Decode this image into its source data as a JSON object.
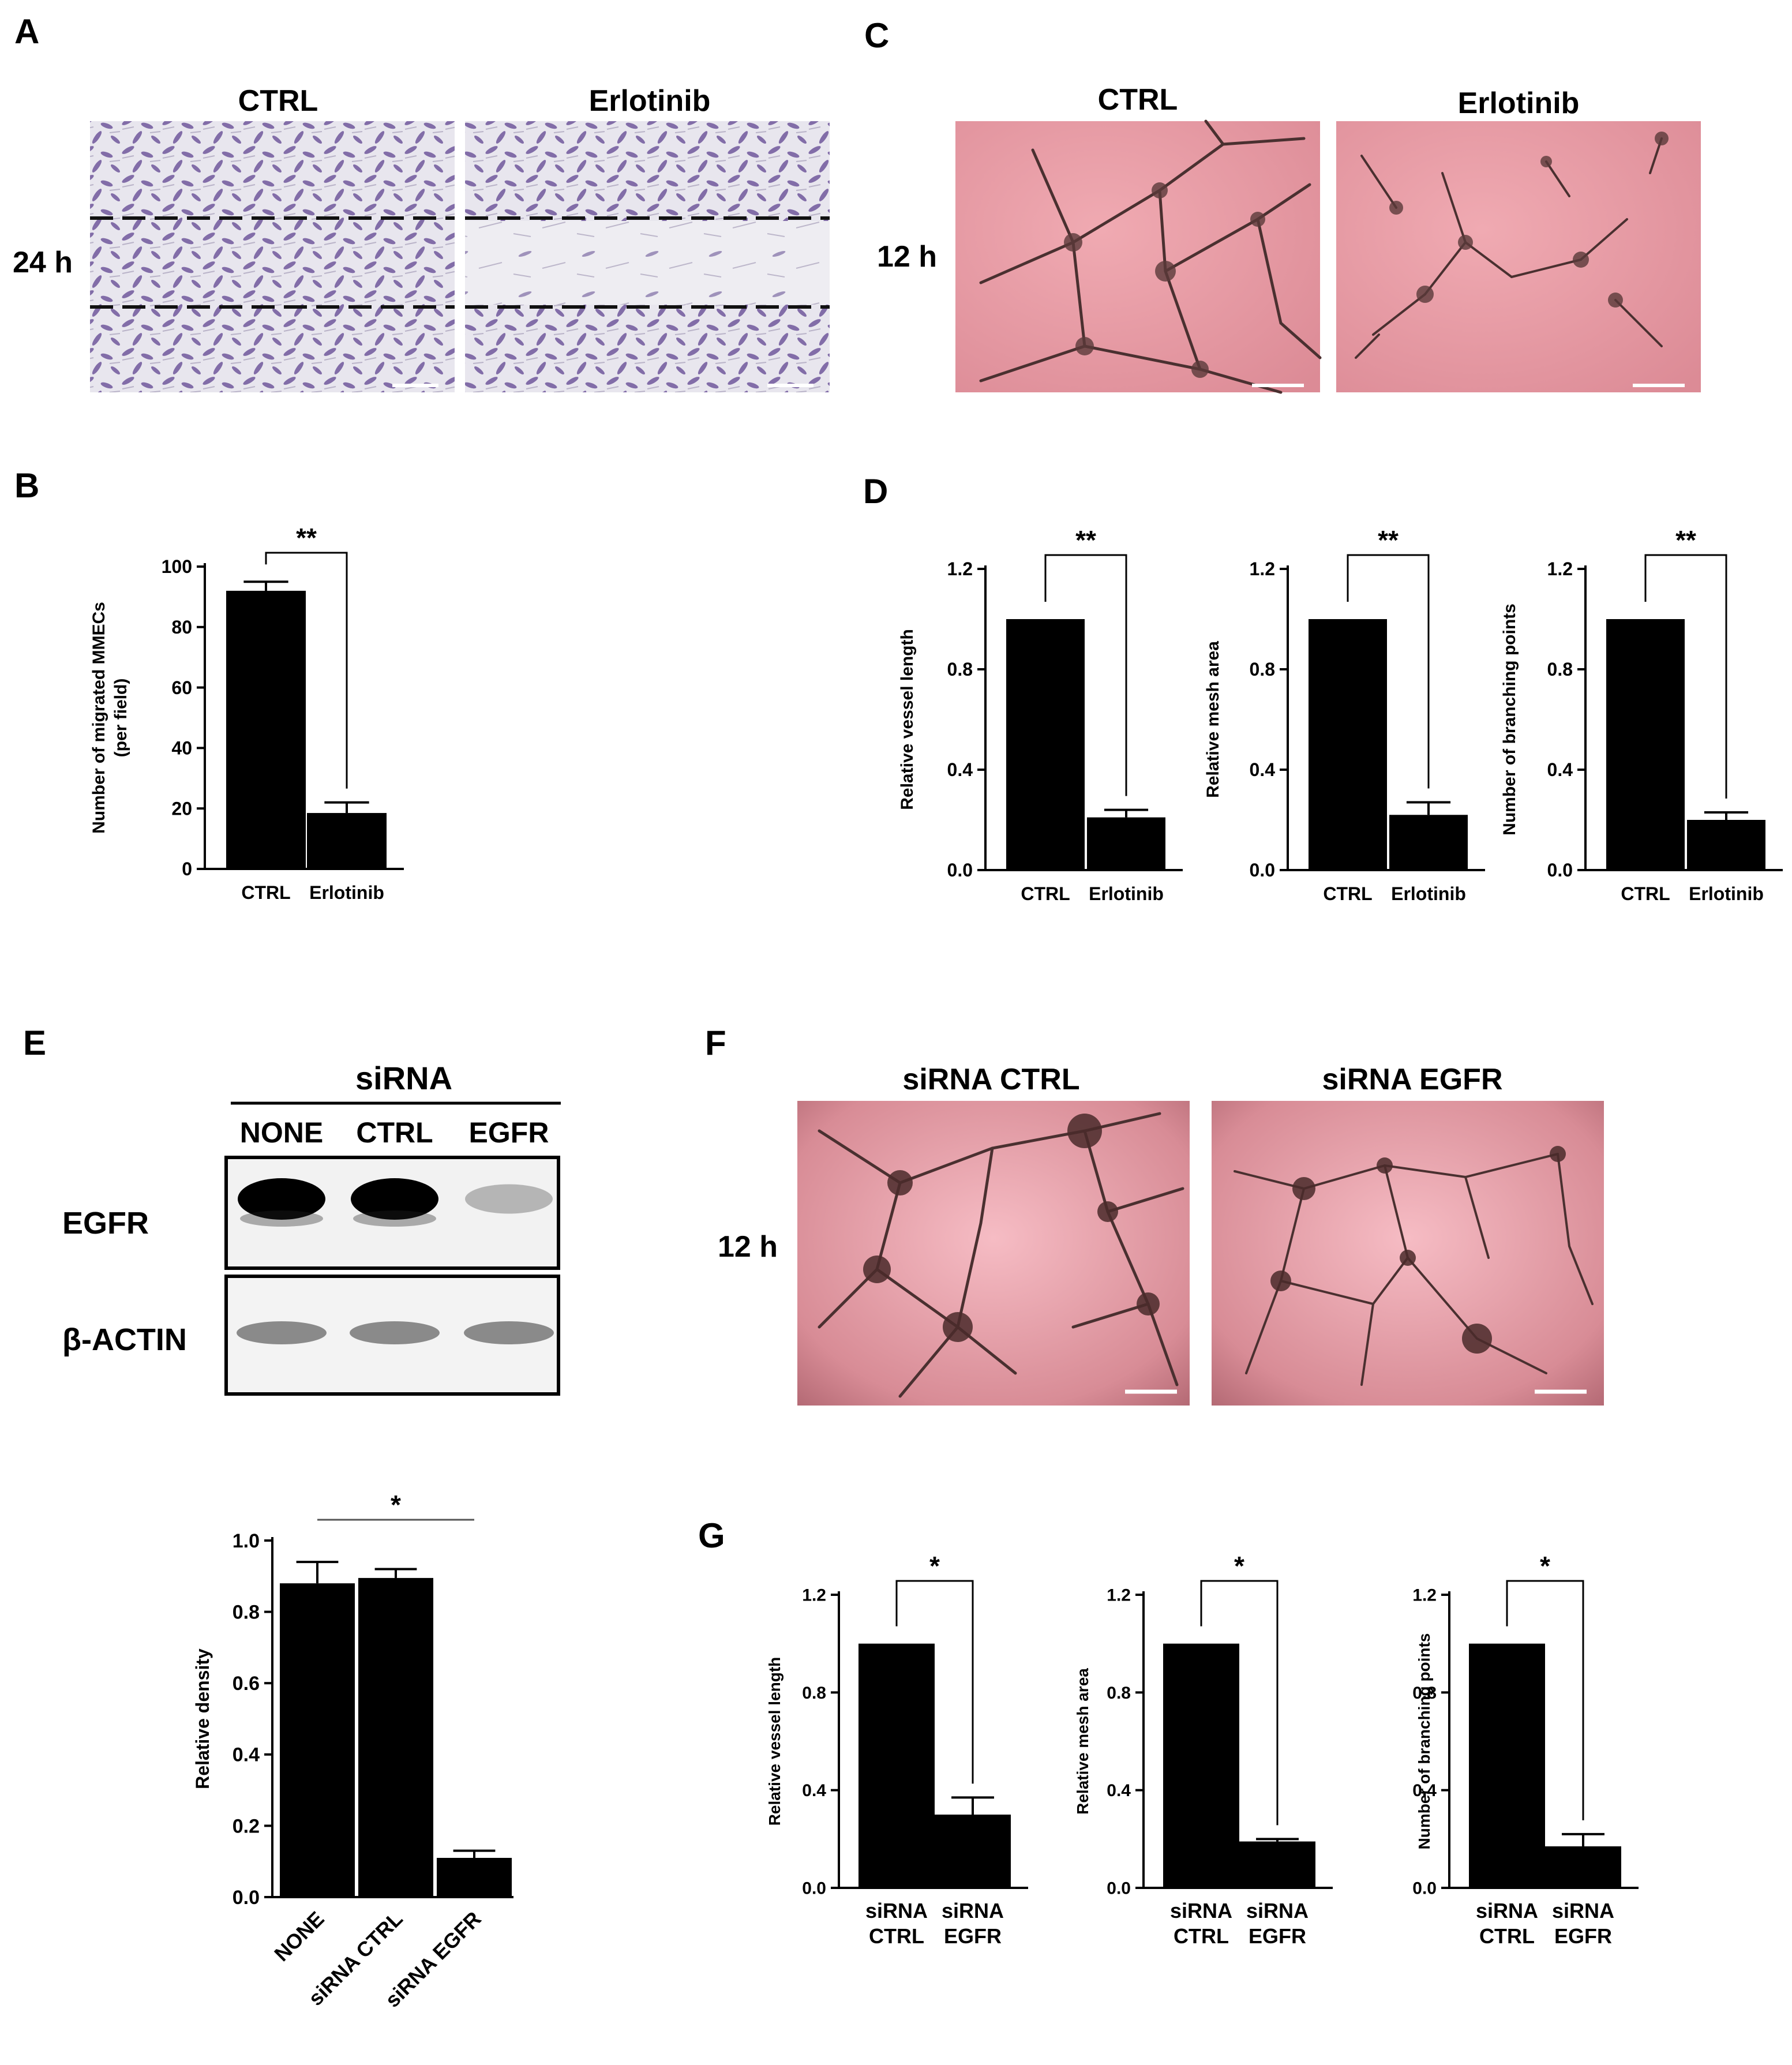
{
  "panels": {
    "A": {
      "letter": "A",
      "time_label": "24 h",
      "columns": [
        "CTRL",
        "Erlotinib"
      ]
    },
    "C": {
      "letter": "C",
      "time_label": "12 h",
      "columns": [
        "CTRL",
        "Erlotinib"
      ]
    },
    "E": {
      "letter": "E",
      "blot_header": "siRNA",
      "lanes": [
        "NONE",
        "CTRL",
        "EGFR"
      ],
      "rows": [
        "EGFR",
        "β-ACTIN"
      ],
      "band_intensity": {
        "EGFR": [
          1.0,
          1.0,
          0.25
        ],
        "β-ACTIN": [
          0.55,
          0.55,
          0.55
        ]
      }
    },
    "F": {
      "letter": "F",
      "time_label": "12 h",
      "columns": [
        "siRNA CTRL",
        "siRNA EGFR"
      ]
    }
  },
  "chart_data": [
    {
      "id": "B",
      "panel_letter": "B",
      "type": "bar",
      "categories": [
        "CTRL",
        "Erlotinib"
      ],
      "values": [
        92,
        18.5
      ],
      "errors": [
        3,
        3.5
      ],
      "ylabel": [
        "Number of migrated MMECs",
        "(per field)"
      ],
      "ylim": [
        0,
        100
      ],
      "yticks": [
        "0",
        "20",
        "40",
        "60",
        "80",
        "100"
      ],
      "significance": "**",
      "rotate_labels": false
    },
    {
      "id": "D1",
      "panel_letter": "D",
      "type": "bar",
      "categories": [
        "CTRL",
        "Erlotinib"
      ],
      "values": [
        1.0,
        0.21
      ],
      "errors": [
        0,
        0.03
      ],
      "ylabel": [
        "Relative vessel length"
      ],
      "ylim": [
        0,
        1.2
      ],
      "yticks": [
        "0.0",
        "0.4",
        "0.8",
        "1.2"
      ],
      "significance": "**",
      "rotate_labels": false
    },
    {
      "id": "D2",
      "panel_letter": "",
      "type": "bar",
      "categories": [
        "CTRL",
        "Erlotinib"
      ],
      "values": [
        1.0,
        0.22
      ],
      "errors": [
        0,
        0.05
      ],
      "ylabel": [
        "Relative mesh area"
      ],
      "ylim": [
        0,
        1.2
      ],
      "yticks": [
        "0.0",
        "0.4",
        "0.8",
        "1.2"
      ],
      "significance": "**",
      "rotate_labels": false
    },
    {
      "id": "D3",
      "panel_letter": "",
      "type": "bar",
      "categories": [
        "CTRL",
        "Erlotinib"
      ],
      "values": [
        1.0,
        0.2
      ],
      "errors": [
        0,
        0.03
      ],
      "ylabel": [
        "Number of branching points"
      ],
      "ylim": [
        0,
        1.2
      ],
      "yticks": [
        "0.0",
        "0.4",
        "0.8",
        "1.2"
      ],
      "significance": "**",
      "rotate_labels": false
    },
    {
      "id": "E2",
      "panel_letter": "",
      "type": "bar",
      "categories": [
        "NONE",
        "siRNA CTRL",
        "siRNA EGFR"
      ],
      "values": [
        0.88,
        0.895,
        0.11
      ],
      "errors": [
        0.06,
        0.025,
        0.02
      ],
      "ylabel": [
        "Relative density"
      ],
      "ylim": [
        0,
        1.0
      ],
      "yticks": [
        "0.0",
        "0.2",
        "0.4",
        "0.6",
        "0.8",
        "1.0"
      ],
      "significance": "*",
      "rotate_labels": true
    },
    {
      "id": "G1",
      "panel_letter": "G",
      "type": "bar",
      "categories": [
        "siRNA\nCTRL",
        "siRNA\nEGFR"
      ],
      "values": [
        1.0,
        0.3
      ],
      "errors": [
        0,
        0.07
      ],
      "ylabel": [
        "Relative vessel length"
      ],
      "ylim": [
        0,
        1.2
      ],
      "yticks": [
        "0.0",
        "0.4",
        "0.8",
        "1.2"
      ],
      "significance": "*",
      "rotate_labels": false
    },
    {
      "id": "G2",
      "panel_letter": "",
      "type": "bar",
      "categories": [
        "siRNA\nCTRL",
        "siRNA\nEGFR"
      ],
      "values": [
        1.0,
        0.19
      ],
      "errors": [
        0,
        0.01
      ],
      "ylabel": [
        "Relative mesh area"
      ],
      "ylim": [
        0,
        1.2
      ],
      "yticks": [
        "0.0",
        "0.4",
        "0.8",
        "1.2"
      ],
      "significance": "*",
      "rotate_labels": false
    },
    {
      "id": "G3",
      "panel_letter": "",
      "type": "bar",
      "categories": [
        "siRNA\nCTRL",
        "siRNA\nEGFR"
      ],
      "values": [
        1.0,
        0.17
      ],
      "errors": [
        0,
        0.05
      ],
      "ylabel": [
        "Number of branching points"
      ],
      "ylim": [
        0,
        1.2
      ],
      "yticks": [
        "0.0",
        "0.4",
        "0.8",
        "1.2"
      ],
      "significance": "*",
      "rotate_labels": false
    }
  ]
}
